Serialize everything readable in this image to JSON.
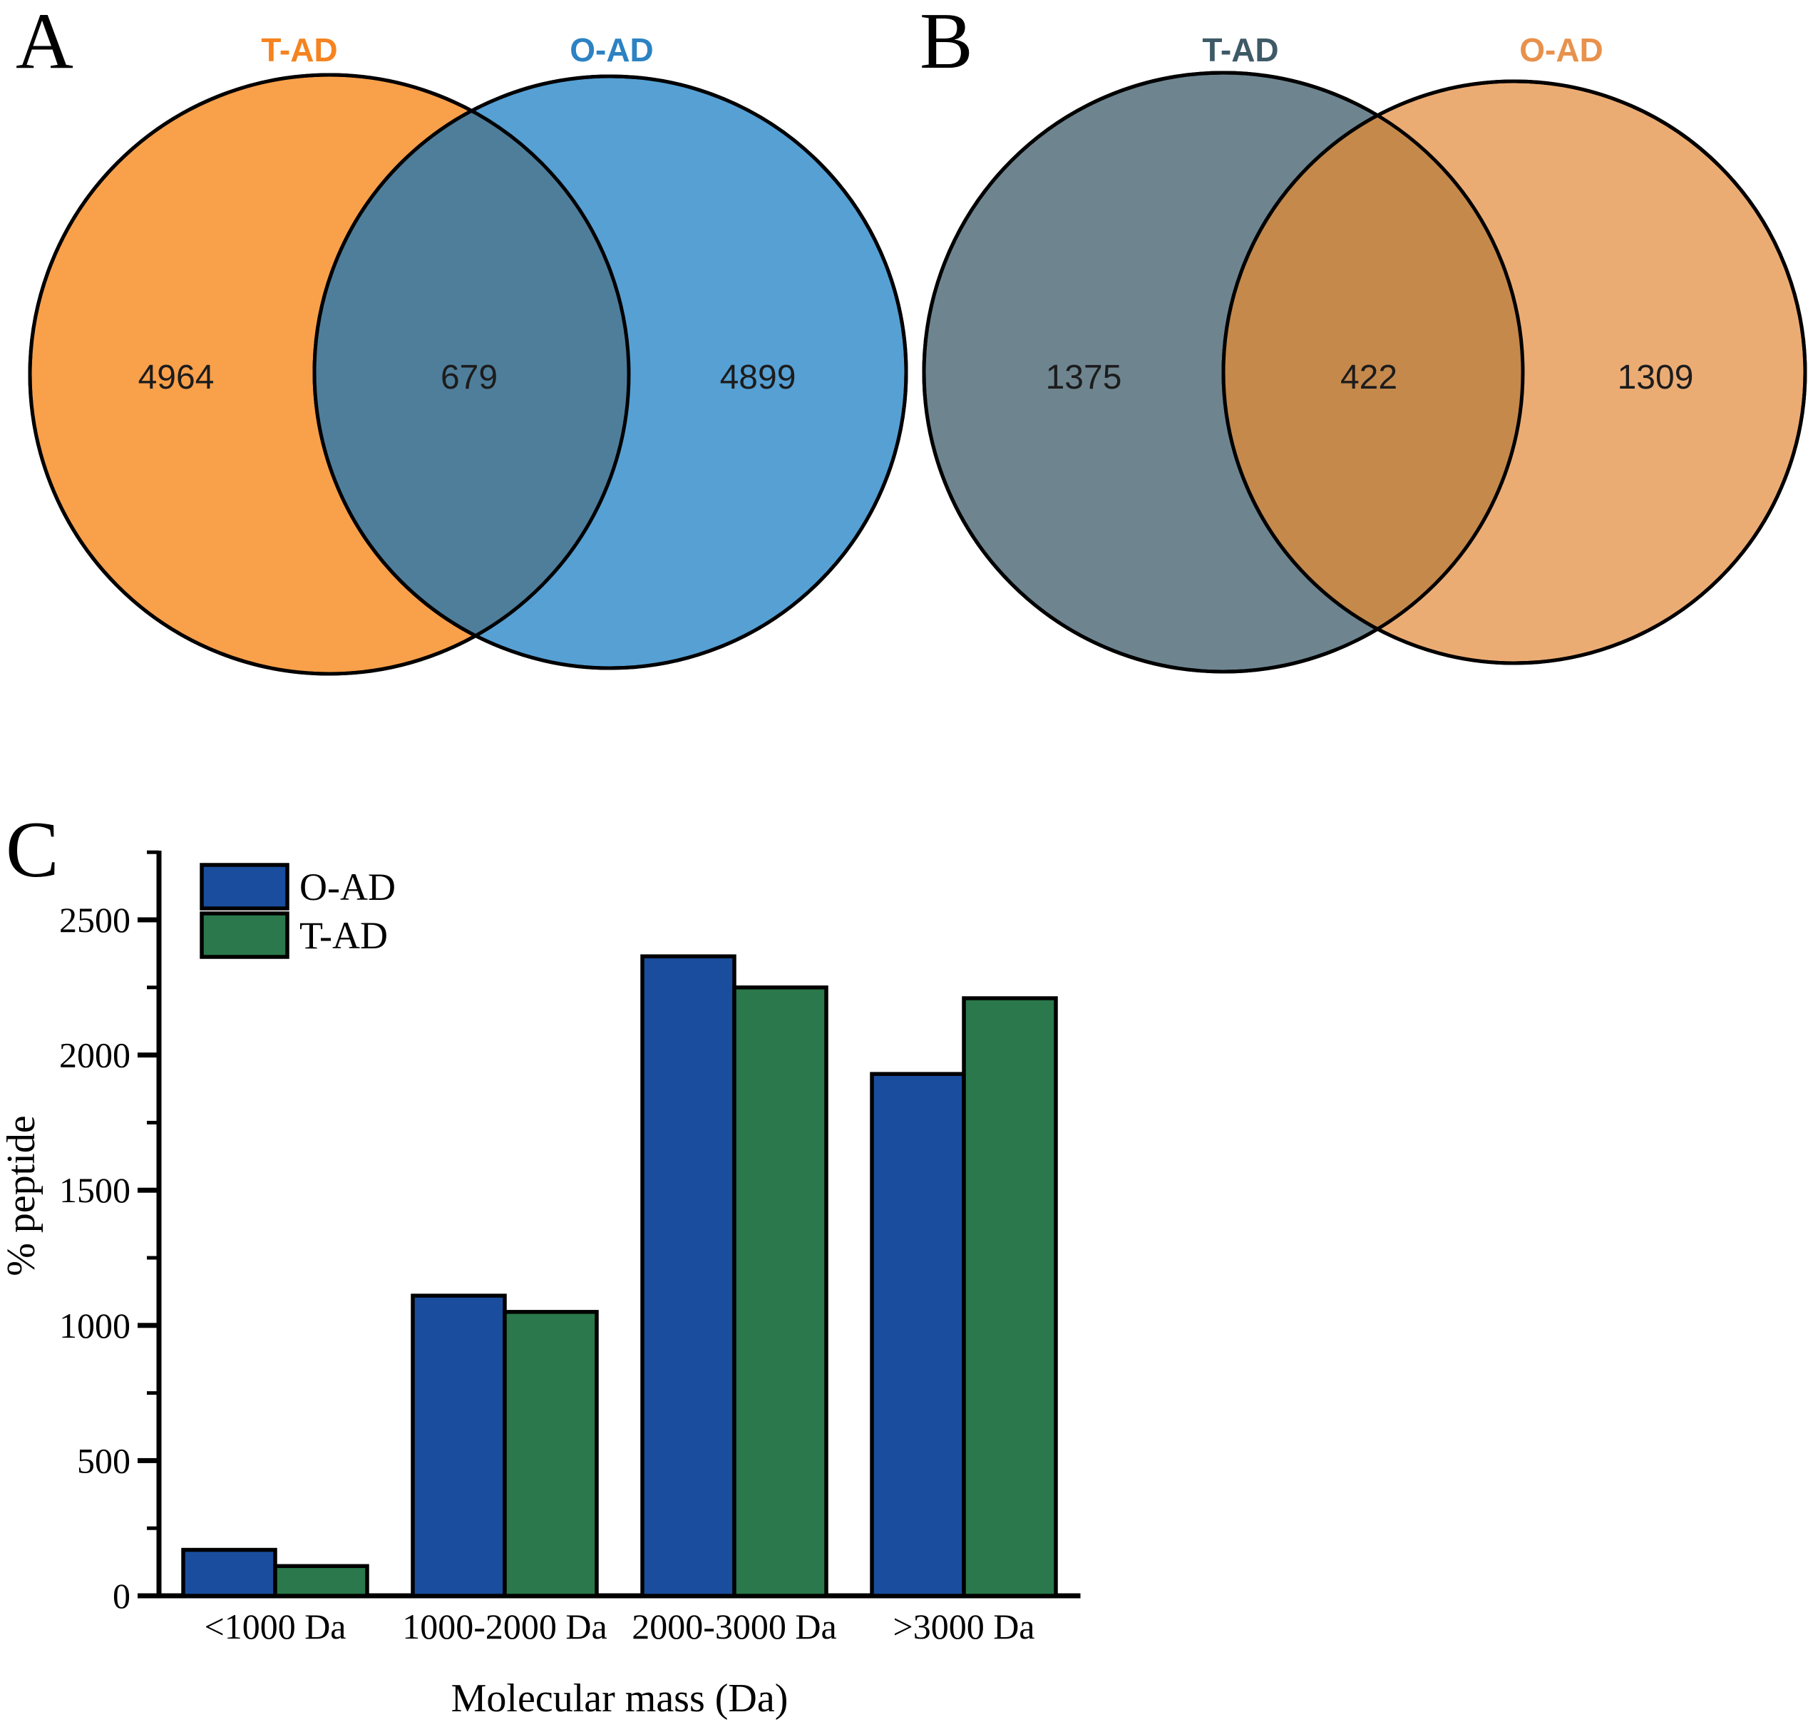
{
  "panel_a": {
    "letter": "A",
    "left_label": "T-AD",
    "right_label": "O-AD",
    "left_count": "4964",
    "overlap_count": "679",
    "right_count": "4899"
  },
  "panel_b": {
    "letter": "B",
    "left_label": "T-AD",
    "right_label": "O-AD",
    "left_count": "1375",
    "overlap_count": "422",
    "right_count": "1309"
  },
  "panel_c": {
    "letter": "C"
  },
  "palette": {
    "a_left_fill": "#F9A04B",
    "a_right_fill": "#56A0D4",
    "a_overlap_fill": "#4F7E9B",
    "a_left_label": "#F5831F",
    "a_right_label": "#2C82C3",
    "b_left_fill": "#6E8590",
    "b_right_fill": "#EBAC74",
    "b_overlap_fill": "#C5894C",
    "b_left_label": "#3E5A66",
    "b_right_label": "#E8914C",
    "oad_bar": "#1A4D9D",
    "tad_bar": "#2A784B",
    "venn_number": "#1C1C1C",
    "axis_color": "#000000"
  },
  "chart_data": {
    "type": "bar",
    "title": "",
    "categories": [
      "<1000 Da",
      "1000-2000 Da",
      "2000-3000 Da",
      ">3000 Da"
    ],
    "series": [
      {
        "name": "O-AD",
        "color": "#1A4D9D",
        "values": [
          170,
          1110,
          2365,
          1930
        ]
      },
      {
        "name": "T-AD",
        "color": "#2A784B",
        "values": [
          110,
          1050,
          2250,
          2210
        ]
      }
    ],
    "xlabel": "Molecular mass (Da)",
    "ylabel": "% peptide",
    "ylim": [
      0,
      2750
    ],
    "y_major_ticks": [
      0,
      500,
      1000,
      1500,
      2000,
      2500
    ],
    "y_minor_step": 250,
    "grid": false,
    "legend_position": "top-left"
  }
}
